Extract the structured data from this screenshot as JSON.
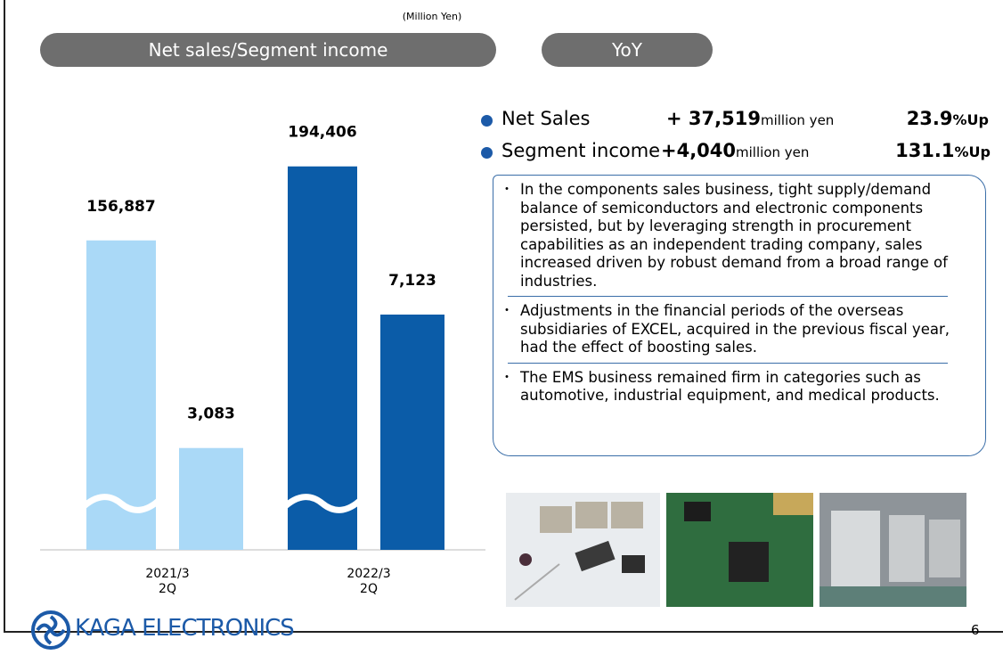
{
  "chart_data": {
    "type": "bar",
    "title": "Net sales/Segment income",
    "unit_note": "(Million Yen)",
    "categories": [
      "2021/3\n2Q",
      "2022/3\n2Q"
    ],
    "category_colors": [
      "#aad9f7",
      "#0b5ca8"
    ],
    "series": [
      {
        "values": [
          156887,
          194406
        ],
        "value_labels": [
          "156,887",
          "194,406"
        ]
      },
      {
        "values": [
          3083,
          7123
        ],
        "value_labels": [
          "3,083",
          "7,123"
        ],
        "axis": "y2"
      }
    ],
    "ylim": [
      0,
      211000
    ],
    "y2lim": [
      0,
      12600
    ],
    "axis_break": true
  },
  "yoy": {
    "title": "YoY",
    "items": [
      {
        "label": "Net Sales",
        "amount": "+ 37,519",
        "unit": "million yen",
        "pct": "23.9",
        "pct_suffix": "%Up"
      },
      {
        "label": "Segment income",
        "amount": "+4,040",
        "unit": "million yen",
        "pct": "131.1",
        "pct_suffix": "%Up"
      }
    ],
    "notes": [
      "In the components sales business, tight supply/demand balance of semiconductors and electronic components persisted, but by leveraging strength in procurement capabilities as an independent trading company, sales increased driven by robust demand from a broad range of industries.",
      "Adjustments in the financial periods of the overseas subsidiaries of EXCEL, acquired in the previous fiscal year, had the effect of boosting sales.",
      "The EMS business remained firm in categories such as automotive, industrial equipment, and medical products."
    ]
  },
  "footer": {
    "logo": "KAGA ELECTRONICS",
    "page": "6"
  }
}
